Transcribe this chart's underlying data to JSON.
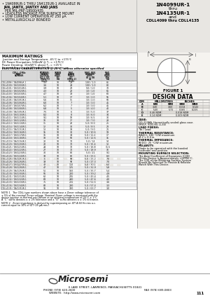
{
  "bg_color": "#f0eeea",
  "white": "#ffffff",
  "black": "#000000",
  "dark_gray": "#333333",
  "light_gray": "#cccccc",
  "med_gray": "#888888",
  "title_right_lines": [
    "1N4099UR-1",
    "thru",
    "1N4135UR-1",
    "and",
    "CDLL4099 thru CDLL4135"
  ],
  "max_ratings_title": "MAXIMUM RATINGS",
  "max_ratings": [
    "Junction and Storage Temperature: -65C to +175C",
    "DC Power Dissipation: 500mW @ Tc = +175C",
    "Power Derating: 10mW/C above Tc = +25C",
    "Forward Derating @ 200 mA: 0.1 Watts maximum"
  ],
  "elec_char_title": "ELECTRICAL CHARACTERISTICS @ 25C, unless otherwise specified",
  "table_rows": [
    [
      "CDLL4099 / 1N4099UR-1",
      "3.3",
      "10",
      "28",
      "100 / 1.0",
      "85"
    ],
    [
      "CDLL4100 / 1N4100UR-1",
      "3.6",
      "10",
      "24",
      "100 / 1.0",
      "80"
    ],
    [
      "CDLL4101 / 1N4101UR-1",
      "3.9",
      "10",
      "23",
      "50 / 1.0",
      "70"
    ],
    [
      "CDLL4102 / 1N4102UR-1",
      "4.3",
      "10",
      "22",
      "10 / 1.0",
      "65"
    ],
    [
      "CDLL4103 / 1N4103UR-1",
      "4.7",
      "10",
      "19",
      "10 / 1.0",
      "60"
    ],
    [
      "CDLL4104 / 1N4104UR-1",
      "5.1",
      "10",
      "17",
      "10 / 2.0",
      "55"
    ],
    [
      "CDLL4105 / 1N4105UR-1",
      "5.6",
      "10",
      "11",
      "10 / 2.0",
      "50"
    ],
    [
      "CDLL4106 / 1N4106UR-1",
      "6.0",
      "10",
      "7",
      "10 / 3.0",
      "45"
    ],
    [
      "CDLL4107 / 1N4107UR-1",
      "6.2",
      "10",
      "7",
      "10 / 3.0",
      "45"
    ],
    [
      "CDLL4108 / 1N4108UR-1",
      "6.8",
      "10",
      "5",
      "10 / 4.0",
      "40"
    ],
    [
      "CDLL4109 / 1N4109UR-1",
      "7.5",
      "10",
      "6",
      "10 / 5.0",
      "37"
    ],
    [
      "CDLL4110 / 1N4110UR-1",
      "8.2",
      "10",
      "8",
      "10 / 6.0",
      "34"
    ],
    [
      "CDLL4111 / 1N4111UR-1",
      "9.1",
      "10",
      "10",
      "10 / 6.5",
      "30"
    ],
    [
      "CDLL4112 / 1N4112UR-1",
      "10",
      "10",
      "17",
      "10 / 7.0",
      "28"
    ],
    [
      "CDLL4113 / 1N4113UR-1",
      "11",
      "10",
      "22",
      "5.0 / 8.0",
      "25"
    ],
    [
      "CDLL4114 / 1N4114UR-1",
      "12",
      "10",
      "30",
      "5.0 / 8.5",
      "23"
    ],
    [
      "CDLL4115 / 1N4115UR-1",
      "13",
      "10",
      "33",
      "5.0 / 9.0",
      "21"
    ],
    [
      "CDLL4116 / 1N4116UR-1",
      "15",
      "10",
      "30",
      "5.0 / 10.6",
      "19"
    ],
    [
      "CDLL4117 / 1N4117UR-1",
      "16",
      "10",
      "34",
      "5.0 / 11.2",
      "17"
    ],
    [
      "CDLL4118 / 1N4118UR-1",
      "18",
      "10",
      "50",
      "5.0 / 12.6",
      "15"
    ],
    [
      "CDLL4119 / 1N4119UR-1",
      "20",
      "10",
      "70",
      "5.0 / 14",
      "14"
    ],
    [
      "CDLL4120 / 1N4120UR-1",
      "22",
      "10",
      "70",
      "5.0 / 15.4",
      "13"
    ],
    [
      "CDLL4121 / 1N4121UR-1",
      "24",
      "10",
      "70",
      "5.0 / 16.8",
      "11.5"
    ],
    [
      "CDLL4122 / 1N4122UR-1",
      "27",
      "10",
      "70",
      "5.0 / 18.9",
      "10"
    ],
    [
      "CDLL4123 / 1N4123UR-1",
      "30",
      "10",
      "80",
      "5.0 / 21",
      "9.1"
    ],
    [
      "CDLL4124 / 1N4124UR-1",
      "33",
      "10",
      "80",
      "5.0 / 23.1",
      "8.3"
    ],
    [
      "CDLL4125 / 1N4125UR-1",
      "36",
      "10",
      "90",
      "5.0 / 25.2",
      "7.6"
    ],
    [
      "CDLL4126 / 1N4126UR-1",
      "39",
      "10",
      "90",
      "5.0 / 27.3",
      "7.0"
    ],
    [
      "CDLL4127 / 1N4127UR-1",
      "43",
      "10",
      "110",
      "5.0 / 30.1",
      "6.4"
    ],
    [
      "CDLL4128 / 1N4128UR-1",
      "47",
      "10",
      "125",
      "5.0 / 32.9",
      "5.8"
    ],
    [
      "CDLL4129 / 1N4129UR-1",
      "51",
      "10",
      "150",
      "5.0 / 35.7",
      "5.4"
    ],
    [
      "CDLL4130 / 1N4130UR-1",
      "56",
      "10",
      "200",
      "5.0 / 39.2",
      "4.9"
    ],
    [
      "CDLL4131 / 1N4131UR-1",
      "62",
      "10",
      "215",
      "5.0 / 43.4",
      "4.5"
    ],
    [
      "CDLL4132 / 1N4132UR-1",
      "68",
      "10",
      "240",
      "5.0 / 47.6",
      "4.0"
    ],
    [
      "CDLL4133 / 1N4133UR-1",
      "75",
      "10",
      "255",
      "5.0 / 52.5",
      "3.6"
    ],
    [
      "CDLL4134 / 1N4134UR-1",
      "82",
      "10",
      "280",
      "5.0 / 57.4",
      "3.3"
    ],
    [
      "CDLL4135 / 1N4135UR-1",
      "91",
      "10",
      "320",
      "5.0 / 63.7",
      "3.0"
    ]
  ],
  "footer_company": "Microsemi",
  "footer_address": "6 LAKE STREET, LAWRENCE, MASSACHUSETTS 01841",
  "footer_phone": "PHONE (978) 620-2600",
  "footer_fax": "FAX (978) 689-0803",
  "footer_web": "WEBSITE:  http://www.microsemi.com",
  "footer_page": "111",
  "watermark": "MICROSEMI"
}
